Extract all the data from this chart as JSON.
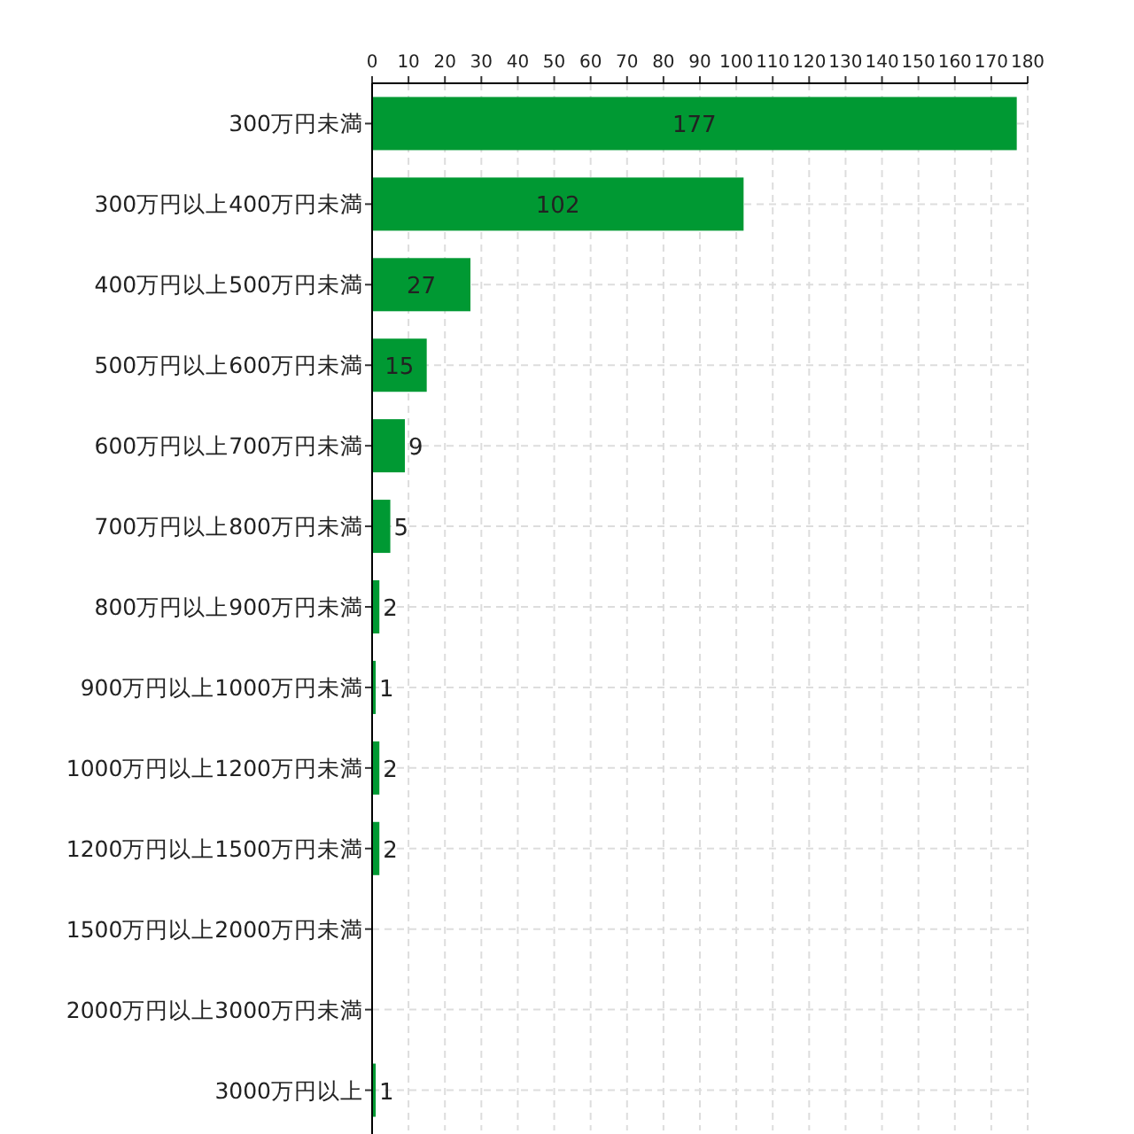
{
  "chart_data": {
    "type": "bar",
    "orientation": "horizontal",
    "categories": [
      "300万円未満",
      "300万円以上400万円未満",
      "400万円以上500万円未満",
      "500万円以上600万円未満",
      "600万円以上700万円未満",
      "700万円以上800万円未満",
      "800万円以上900万円未満",
      "900万円以上1000万円未満",
      "1000万円以上1200万円未満",
      "1200万円以上1500万円未満",
      "1500万円以上2000万円未満",
      "2000万円以上3000万円未満",
      "3000万円以上"
    ],
    "values": [
      177,
      102,
      27,
      15,
      9,
      5,
      2,
      1,
      2,
      2,
      0,
      0,
      1
    ],
    "value_labels": [
      "177",
      "102",
      "27",
      "15",
      "9",
      "5",
      "2",
      "1",
      "2",
      "2",
      null,
      null,
      "1"
    ],
    "color": "#009933",
    "xlim": [
      0,
      180
    ],
    "xticks": [
      0,
      10,
      20,
      30,
      40,
      50,
      60,
      70,
      80,
      90,
      100,
      110,
      120,
      130,
      140,
      150,
      160,
      170,
      180
    ],
    "grid": true
  }
}
